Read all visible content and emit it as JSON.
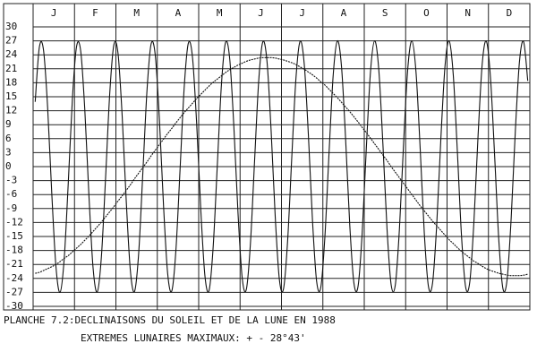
{
  "chart_data": {
    "type": "line",
    "title": "PLANCHE 7.2:DECLINAISONS DU SOLEIL ET DE LA LUNE EN 1988",
    "subtitle": "EXTREMES LUNAIRES MAXIMAUX: + - 28°43'",
    "categories": [
      null,
      null,
      null,
      null,
      null,
      "J",
      null,
      null,
      null,
      null,
      null,
      null,
      null,
      null,
      null,
      "F",
      null,
      null,
      null,
      null,
      null,
      null,
      null,
      null,
      null,
      "M",
      null,
      null,
      null,
      null,
      null,
      null,
      null,
      null,
      null,
      "A",
      null,
      null,
      null,
      null,
      null,
      null,
      null,
      null,
      null,
      "M",
      null,
      null,
      null,
      null,
      null,
      null,
      null,
      null,
      null,
      "J",
      null,
      null,
      null,
      null,
      null,
      null,
      null,
      null,
      null,
      "J",
      null,
      null,
      null,
      null,
      null,
      null,
      null,
      null,
      null,
      "A",
      null,
      null,
      null,
      null,
      null,
      null,
      null,
      null,
      null,
      "S",
      null,
      null,
      null,
      null,
      null,
      null,
      null,
      null,
      null,
      "O",
      null,
      null,
      null,
      null,
      null,
      null,
      null,
      null,
      null,
      "N",
      null,
      null,
      null,
      null,
      null,
      null,
      null,
      null,
      null,
      "D",
      null,
      null,
      null,
      null
    ],
    "series": [
      {
        "color": "#111111",
        "values": [
          13.9,
          25.6,
          25.1,
          12.8,
          -5.6,
          -21.3,
          -27,
          -19.9,
          -3.4,
          14.7,
          25.8,
          24.8,
          12.0,
          -6.5,
          -21.9,
          -26.9,
          -19.3,
          -2.5,
          15.5,
          26.1,
          24.4,
          11.1,
          -7.4,
          -22.4,
          -26.8,
          -18.6,
          -1.5,
          16.2,
          26.3,
          24.0,
          10.3,
          -8.3,
          -22.9,
          -26.7,
          -17.9,
          -0.6,
          17.0,
          26.5,
          23.5,
          9.4,
          -9.1,
          -23.4,
          -26.6,
          -17.2,
          0.3,
          17.7,
          26.7,
          23.1,
          8.5,
          -10.0,
          -23.8,
          -26.4,
          -16.5,
          1.2,
          18.4,
          26.8,
          22.6,
          7.7,
          -10.9,
          -24.3,
          -26.2,
          -15.7,
          2.2,
          19.0,
          26.9,
          22.0,
          6.8,
          -11.7,
          -24.7,
          -25.9,
          -14.9,
          3.1,
          19.7,
          27.0,
          21.5,
          5.8,
          -12.6,
          -25.0,
          -25.7,
          -14.2,
          4.0,
          20.3,
          27.0,
          20.9,
          4.9,
          -13.4,
          -25.4,
          -25.4,
          -13.3,
          5.0,
          20.9,
          27.0,
          20.3,
          4.0,
          -14.2,
          -25.7,
          -25.0,
          -12.5,
          5.9,
          21.5,
          27.0,
          19.7,
          3.1,
          -15.0,
          -25.9,
          -24.7,
          -11.7,
          6.8,
          22.1,
          26.9,
          19.0,
          2.2,
          -15.7,
          -26.2,
          -24.3,
          -10.9,
          7.7,
          22.6,
          26.8,
          18.4
        ]
      },
      {
        "color": "#111111",
        "values": [
          -22.9,
          -22.7,
          -22.3,
          -21.9,
          -21.5,
          -21.0,
          -20.4,
          -19.7,
          -19.1,
          -18.3,
          -17.5,
          -16.7,
          -15.8,
          -14.9,
          -13.9,
          -12.9,
          -11.9,
          -10.8,
          -9.7,
          -8.6,
          -7.4,
          -6.3,
          -5.1,
          -3.9,
          -2.6,
          -1.4,
          -0.2,
          1.0,
          2.3,
          3.5,
          4.7,
          5.9,
          7.1,
          8.2,
          9.4,
          10.5,
          11.6,
          12.6,
          13.6,
          14.6,
          15.5,
          16.4,
          17.3,
          18.1,
          18.8,
          19.5,
          20.2,
          20.8,
          21.3,
          21.8,
          22.2,
          22.6,
          22.9,
          23.1,
          23.3,
          23.4,
          23.4,
          23.4,
          23.3,
          23.1,
          22.9,
          22.6,
          22.3,
          21.9,
          21.4,
          20.9,
          20.3,
          19.7,
          19.0,
          18.2,
          17.5,
          16.6,
          15.7,
          14.8,
          13.8,
          12.8,
          11.8,
          10.7,
          9.6,
          8.4,
          7.3,
          6.1,
          4.9,
          3.7,
          2.5,
          1.3,
          0.0,
          -1.2,
          -2.4,
          -3.6,
          -4.8,
          -6.0,
          -7.2,
          -8.4,
          -9.5,
          -10.6,
          -11.7,
          -12.7,
          -13.7,
          -14.7,
          -15.7,
          -16.5,
          -17.4,
          -18.2,
          -18.9,
          -19.6,
          -20.3,
          -20.8,
          -21.4,
          -21.9,
          -22.3,
          -22.6,
          -22.9,
          -23.1,
          -23.3,
          -23.4,
          -23.4,
          -23.4,
          -23.3,
          -23.1
        ]
      }
    ],
    "ylim": [
      -30,
      30
    ],
    "yticks": [
      30,
      27,
      24,
      21,
      18,
      15,
      12,
      9,
      6,
      3,
      0,
      -3,
      -6,
      -9,
      -12,
      -15,
      -18,
      -21,
      -24,
      -27,
      -30
    ],
    "grid": true
  }
}
